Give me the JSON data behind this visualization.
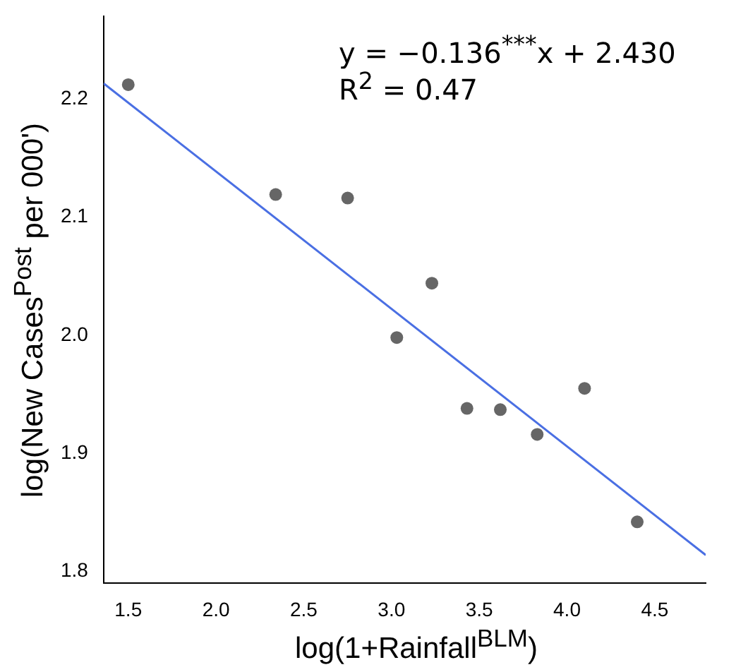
{
  "chart_data": {
    "type": "scatter",
    "xlabel": "log(1+Rainfall$^{BLM}$)",
    "ylabel": "log(New Cases$^{Post}$ per 000')",
    "xlim": [
      1.36,
      4.79
    ],
    "ylim": [
      1.79,
      2.27
    ],
    "xticks": [
      1.5,
      {
        "value": 2,
        "label": "2.0"
      },
      2.5,
      {
        "value": 3,
        "label": "3.0"
      },
      3.5,
      {
        "value": 4,
        "label": "4.0"
      },
      4.5
    ],
    "yticks": [
      1.8,
      1.9,
      {
        "value": 2,
        "label": "2.0"
      },
      2.1,
      2.2
    ],
    "grid": false,
    "annotations": [
      "y = −0.136$^{***}$x + 2.430",
      "R$^{2}$ = 0.47"
    ],
    "series": [
      {
        "marker": "circle",
        "color": "#666666",
        "x": [
          1.5,
          2.34,
          2.75,
          3.03,
          3.23,
          3.43,
          3.62,
          3.83,
          4.1,
          4.4
        ],
        "values": [
          2.212,
          2.119,
          2.116,
          1.998,
          2.044,
          1.938,
          1.937,
          1.916,
          1.955,
          1.842
        ]
      },
      {
        "type": "line",
        "marker": "none",
        "color": "#4a6fe3",
        "x": [
          1.36,
          4.79
        ],
        "values": [
          2.213,
          1.814
        ]
      }
    ]
  }
}
